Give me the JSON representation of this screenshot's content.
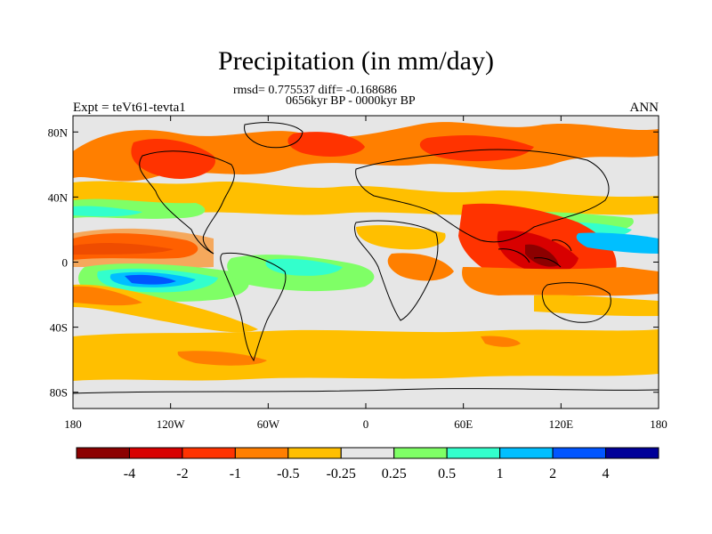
{
  "figure": {
    "title": "Precipitation (in mm/day)",
    "stats_line": "rmsd= 0.775537 diff= -0.168686",
    "period_line": "0656kyr BP - 0000kyr BP",
    "experiment_label": "Expt = teVt61-tevta1",
    "season_label": "ANN"
  },
  "map": {
    "projection": "cylindrical-equidistant",
    "lon_range": [
      -180,
      180
    ],
    "lat_range": [
      -90,
      90
    ],
    "x_ticks": [
      {
        "value": -180,
        "label": "180"
      },
      {
        "value": -120,
        "label": "120W"
      },
      {
        "value": -60,
        "label": "60W"
      },
      {
        "value": 0,
        "label": "0"
      },
      {
        "value": 60,
        "label": "60E"
      },
      {
        "value": 120,
        "label": "120E"
      },
      {
        "value": 180,
        "label": "180"
      }
    ],
    "y_ticks": [
      {
        "value": 80,
        "label": "80N"
      },
      {
        "value": 40,
        "label": "40N"
      },
      {
        "value": 0,
        "label": "0"
      },
      {
        "value": -40,
        "label": "40S"
      },
      {
        "value": -80,
        "label": "80S"
      }
    ],
    "background_color": "#e6e6e6",
    "colorbar": {
      "boundaries": [
        "-4",
        "-2",
        "-1",
        "-0.5",
        "-0.25",
        "0.25",
        "0.5",
        "1",
        "2",
        "4"
      ],
      "colors": [
        "#8c0000",
        "#d80000",
        "#ff3300",
        "#ff7f00",
        "#ffbf00",
        "#e6e6e6",
        "#7fff66",
        "#33ffcc",
        "#00bfff",
        "#0055ff",
        "#000099"
      ]
    }
  }
}
